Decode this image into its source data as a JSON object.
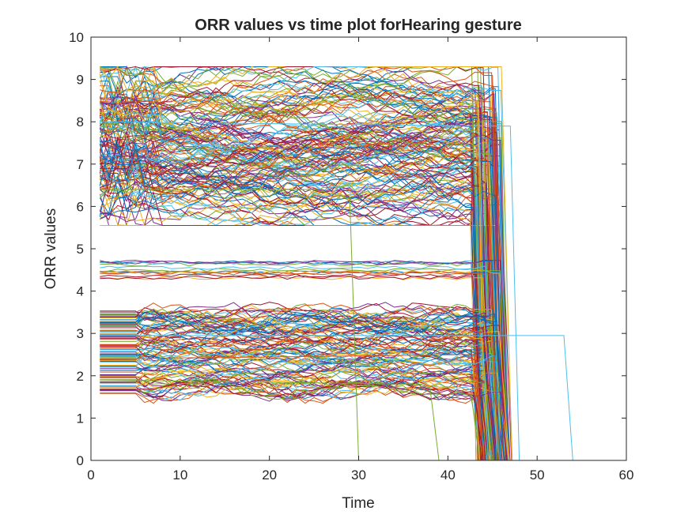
{
  "chart_data": {
    "type": "line",
    "title": "ORR values vs time plot forHearing gesture",
    "xlabel": "Time",
    "ylabel": "ORR values",
    "xlim": [
      0,
      60
    ],
    "ylim": [
      0,
      10
    ],
    "xticks": [
      "0",
      "10",
      "20",
      "30",
      "40",
      "50",
      "60"
    ],
    "yticks": [
      "0",
      "1",
      "2",
      "3",
      "4",
      "5",
      "6",
      "7",
      "8",
      "9",
      "10"
    ],
    "grid": false,
    "legend": "none",
    "box": true,
    "series_count_note": "hundreds of overlapping series, MATLAB default color order",
    "colors": [
      "#0072BD",
      "#D95319",
      "#EDB120",
      "#7E2F8E",
      "#77AC30",
      "#4DBEEE",
      "#A2142F"
    ],
    "value_bands": [
      {
        "band": "upper",
        "range": [
          5.7,
          9.2
        ],
        "approx_count": 160
      },
      {
        "band": "middle",
        "range": [
          4.2,
          4.9
        ],
        "approx_count": 14
      },
      {
        "band": "lower",
        "range": [
          1.5,
          3.7
        ],
        "approx_count": 110
      }
    ],
    "time_extent": {
      "start": 1,
      "typical_end": 45,
      "max_end": 55
    },
    "notable_series": [
      {
        "x": [
          1,
          25,
          29,
          30,
          47
        ],
        "y": [
          6.4,
          6.4,
          6.2,
          0,
          0
        ],
        "color": "#77AC30"
      },
      {
        "x": [
          1,
          37,
          38,
          39,
          47
        ],
        "y": [
          1.9,
          1.8,
          1.7,
          0,
          0
        ],
        "color": "#77AC30"
      },
      {
        "x": [
          1,
          44,
          46,
          53,
          54,
          55
        ],
        "y": [
          2.95,
          2.95,
          2.95,
          2.95,
          0,
          0
        ],
        "color": "#4DBEEE"
      },
      {
        "x": [
          1,
          45,
          46,
          47,
          48
        ],
        "y": [
          8.0,
          7.9,
          7.9,
          7.9,
          0
        ],
        "color": "#4DBEEE"
      },
      {
        "x": [
          1,
          43,
          44,
          45,
          55
        ],
        "y": [
          2.4,
          2.5,
          0,
          0,
          0
        ],
        "color": "#D95319"
      }
    ]
  }
}
